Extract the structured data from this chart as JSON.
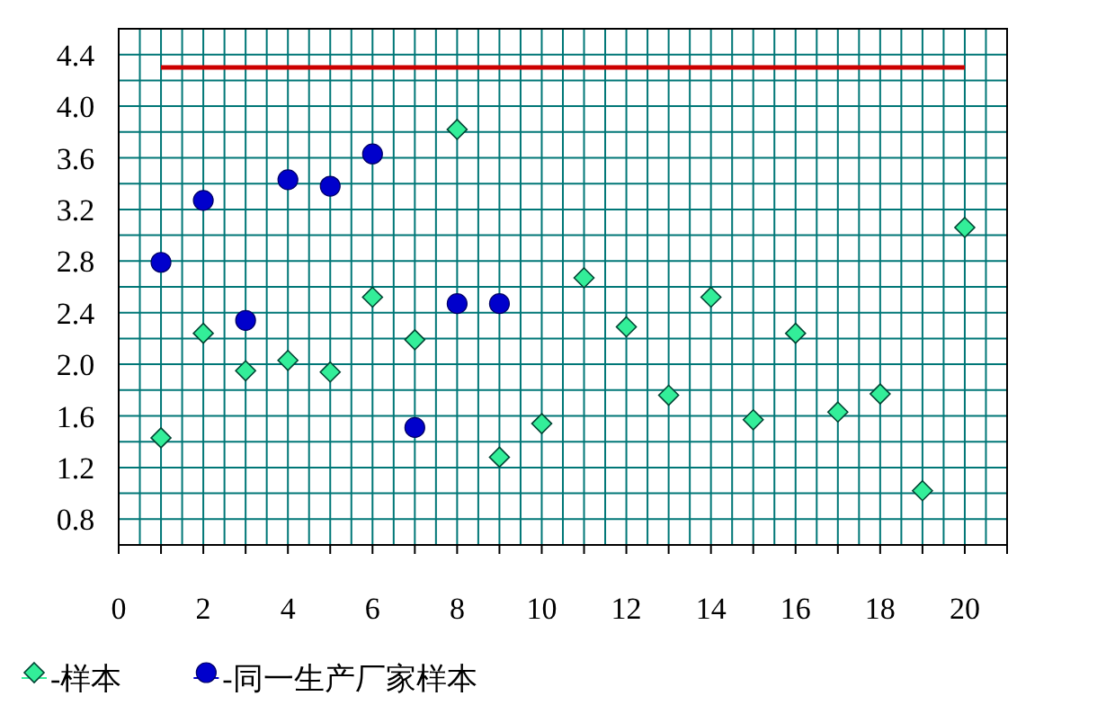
{
  "chart_data": {
    "type": "scatter",
    "xlim": [
      0,
      21
    ],
    "ylim": [
      0.6,
      4.6
    ],
    "xticks": [
      0,
      2,
      4,
      6,
      8,
      10,
      12,
      14,
      16,
      18,
      20
    ],
    "yticks": [
      0.8,
      1.2,
      1.6,
      {
        "value": 2,
        "label": "2.0"
      },
      2.4,
      2.8,
      3.2,
      3.6,
      {
        "value": 4,
        "label": "4.0"
      },
      4.4
    ],
    "grid": true,
    "legend": "bottom",
    "series": [
      {
        "name": "-样本",
        "color": "#33ee99",
        "marker": "diamond",
        "x": [
          1,
          2,
          3,
          4,
          5,
          6,
          7,
          8,
          9,
          10,
          11,
          12,
          13,
          14,
          15,
          16,
          17,
          18,
          19,
          20
        ],
        "values": [
          1.43,
          2.24,
          1.95,
          2.03,
          1.94,
          2.52,
          2.19,
          3.82,
          1.28,
          1.54,
          2.67,
          2.29,
          1.76,
          2.52,
          1.57,
          2.24,
          1.63,
          1.77,
          1.02,
          3.06
        ]
      },
      {
        "name": "-同一生产厂家样本",
        "color": "#0000cc",
        "marker": "circle",
        "x": [
          1,
          2,
          3,
          4,
          5,
          6,
          7,
          8,
          9
        ],
        "values": [
          2.79,
          3.27,
          2.34,
          3.43,
          3.38,
          3.63,
          1.51,
          2.47,
          2.47
        ]
      },
      {
        "type": "line",
        "color": "#cc0000",
        "marker": "none",
        "x": [
          1,
          20
        ],
        "values": [
          4.3,
          4.3
        ]
      }
    ]
  }
}
